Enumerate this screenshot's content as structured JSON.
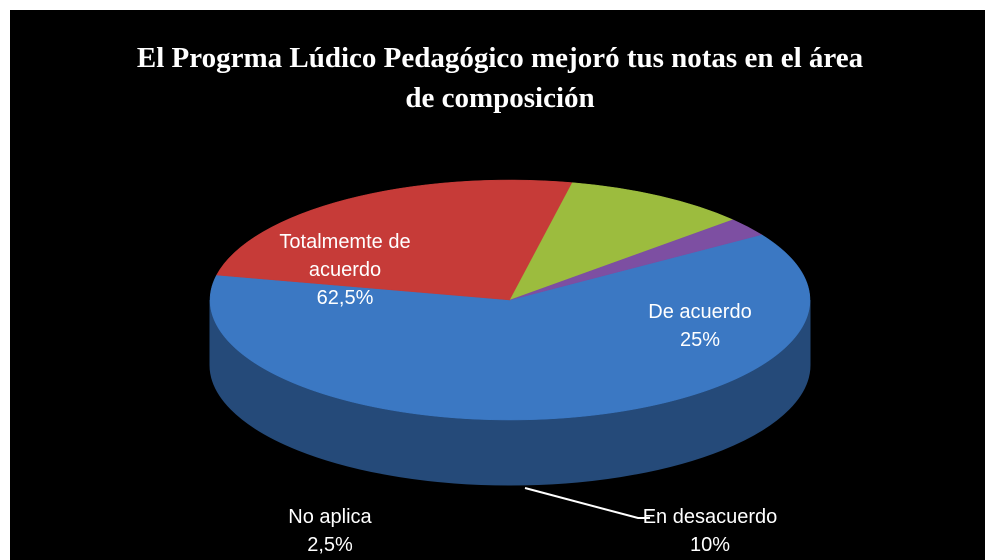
{
  "chart_data": {
    "type": "pie3d",
    "title": "El Progrma Lúdico Pedagógico mejoró tus notas en el área de composición",
    "categories": [
      "Totalmemte de acuerdo",
      "De acuerdo",
      "En desacuerdo",
      "No aplica"
    ],
    "values": [
      62.5,
      25,
      10,
      2.5
    ],
    "value_labels": [
      "62,5%",
      "25%",
      "10%",
      "2,5%"
    ],
    "colors": [
      "#3b78c3",
      "#c63b38",
      "#9cbc3e",
      "#7d4fa2"
    ]
  }
}
